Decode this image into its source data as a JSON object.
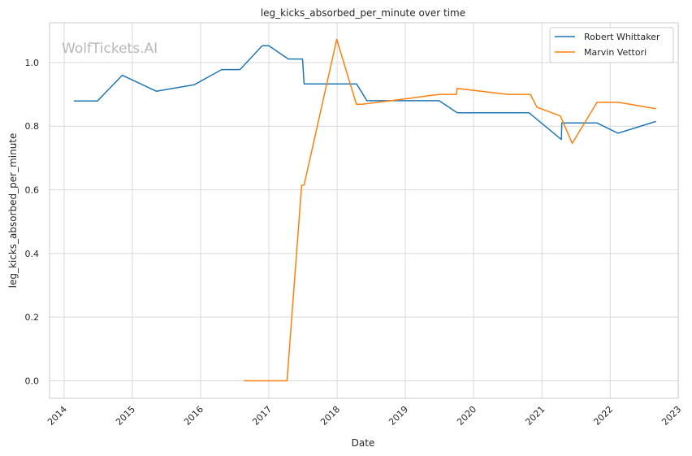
{
  "chart_data": {
    "type": "line",
    "title": "leg_kicks_absorbed_per_minute over time",
    "xlabel": "Date",
    "ylabel": "leg_kicks_absorbed_per_minute",
    "watermark": "WolfTickets.AI",
    "xlim": [
      "2013-10-15",
      "2022-12-31"
    ],
    "ylim": [
      -0.055,
      1.125
    ],
    "x_ticks": [
      "2014",
      "2015",
      "2016",
      "2017",
      "2018",
      "2019",
      "2020",
      "2021",
      "2022",
      "2023"
    ],
    "y_ticks": [
      "0.0",
      "0.2",
      "0.4",
      "0.6",
      "0.8",
      "1.0"
    ],
    "y_tick_values": [
      0.0,
      0.2,
      0.4,
      0.6,
      0.8,
      1.0
    ],
    "grid": true,
    "legend_position": "top-right",
    "series": [
      {
        "name": "Robert Whittaker",
        "color": "#1f77b4",
        "x": [
          "2014-02-22",
          "2014-06-28",
          "2014-11-08",
          "2015-05-09",
          "2015-11-28",
          "2016-04-23",
          "2016-07-30",
          "2016-11-26",
          "2016-12-31",
          "2017-04-15",
          "2017-06-30",
          "2017-07-08",
          "2018-01-20",
          "2018-04-15",
          "2018-06-09",
          "2018-10-06",
          "2019-07-01",
          "2019-10-06",
          "2020-04-01",
          "2020-07-25",
          "2020-10-24",
          "2021-04-15",
          "2021-04-17",
          "2021-10-23",
          "2022-02-12",
          "2022-09-03"
        ],
        "values": [
          0.879,
          0.879,
          0.96,
          0.91,
          0.93,
          0.978,
          0.978,
          1.053,
          1.053,
          1.011,
          1.011,
          0.933,
          0.933,
          0.933,
          0.88,
          0.88,
          0.88,
          0.842,
          0.842,
          0.842,
          0.842,
          0.758,
          0.81,
          0.81,
          0.778,
          0.815
        ]
      },
      {
        "name": "Marvin Vettori",
        "color": "#ff7f0e",
        "x": [
          "2016-08-20",
          "2016-12-01",
          "2017-04-08",
          "2017-06-25",
          "2017-07-08",
          "2017-12-30",
          "2018-04-14",
          "2018-05-15",
          "2018-10-15",
          "2019-07-01",
          "2019-10-01",
          "2019-10-05",
          "2020-07-01",
          "2020-10-31",
          "2020-12-05",
          "2021-04-10",
          "2021-06-12",
          "2021-10-23",
          "2022-02-15",
          "2022-09-03"
        ],
        "values": [
          0.0,
          0.0,
          0.0,
          0.615,
          0.615,
          1.073,
          0.869,
          0.869,
          0.88,
          0.9,
          0.9,
          0.919,
          0.9,
          0.9,
          0.86,
          0.832,
          0.746,
          0.875,
          0.875,
          0.855
        ]
      }
    ]
  }
}
